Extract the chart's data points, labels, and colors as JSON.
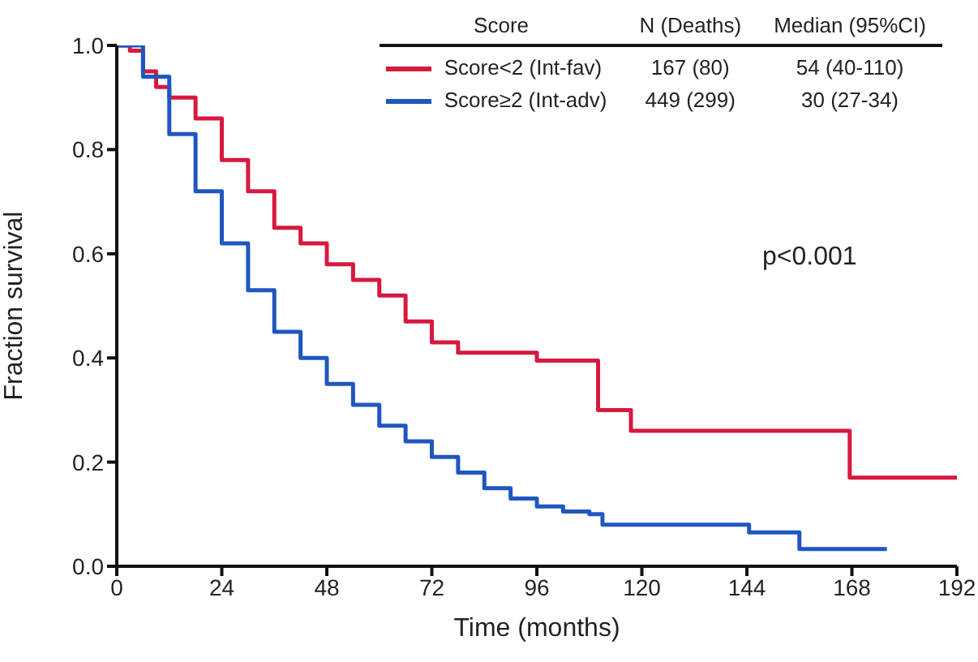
{
  "chart_data": {
    "type": "step",
    "xlabel": "Time (months)",
    "ylabel": "Fraction survival",
    "legend_title": "Score",
    "legend": "top right",
    "marker": "none",
    "grid": false,
    "xlim": [
      0,
      192
    ],
    "xticks": [
      0,
      24,
      48,
      72,
      96,
      120,
      144,
      168,
      192
    ],
    "ylim": [
      0,
      1
    ],
    "yticks": [
      {
        "value": 0,
        "label": "0.0"
      },
      {
        "value": 0.2,
        "label": "0.2"
      },
      {
        "value": 0.4,
        "label": "0.4"
      },
      {
        "value": 0.6,
        "label": "0.6"
      },
      {
        "value": 0.8,
        "label": "0.8"
      },
      {
        "value": 1,
        "label": "1.0"
      }
    ],
    "series": [
      {
        "name": "Score<2 (Int-fav)",
        "color": "#d6193e",
        "x": [
          0,
          3,
          6,
          9,
          12,
          18,
          24,
          30,
          36,
          42,
          48,
          54,
          60,
          66,
          72,
          78,
          84,
          96,
          110,
          117.5,
          167.5,
          192
        ],
        "values": [
          1,
          0.99,
          0.95,
          0.92,
          0.9,
          0.86,
          0.78,
          0.72,
          0.65,
          0.62,
          0.58,
          0.55,
          0.52,
          0.47,
          0.43,
          0.41,
          0.41,
          0.395,
          0.3,
          0.26,
          0.17,
          0.17
        ]
      },
      {
        "name": "Score≥2 (Int-adv)",
        "color": "#1f57c0",
        "x": [
          0,
          6,
          12,
          18,
          24,
          30,
          36,
          42,
          48,
          54,
          60,
          66,
          72,
          78,
          84,
          90,
          96,
          102,
          108,
          111,
          144.5,
          156,
          176
        ],
        "values": [
          1,
          0.94,
          0.83,
          0.72,
          0.62,
          0.53,
          0.45,
          0.4,
          0.35,
          0.31,
          0.27,
          0.24,
          0.21,
          0.18,
          0.15,
          0.13,
          0.115,
          0.105,
          0.1,
          0.08,
          0.065,
          0.033,
          0.033
        ]
      }
    ],
    "annotations": [
      "N (Deaths)",
      "Median (95%CI)",
      "167 (80)",
      "54 (40-110)",
      "449 (299)",
      "30 (27-34)",
      "p<0.001"
    ]
  }
}
